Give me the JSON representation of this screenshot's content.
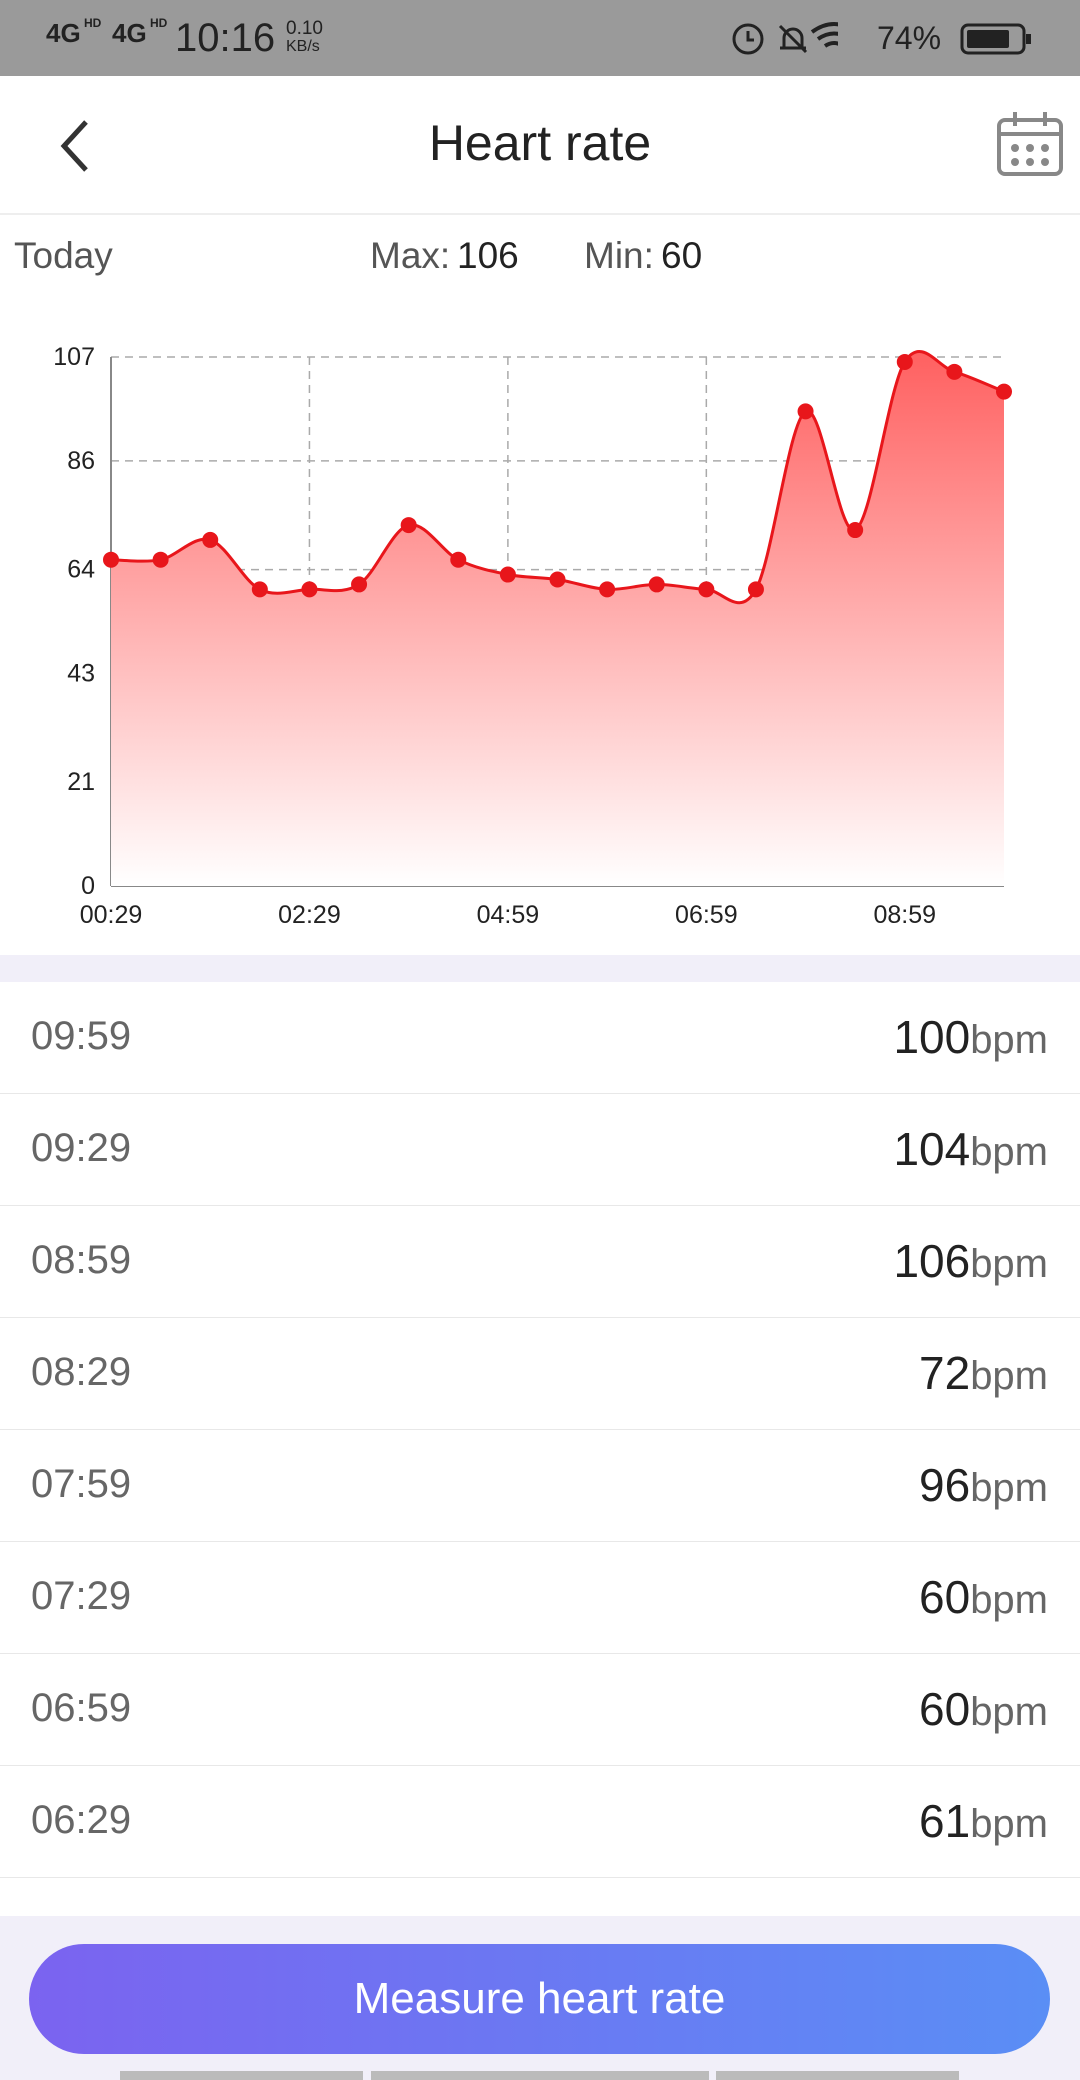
{
  "status_bar": {
    "network": [
      "4G",
      "4G"
    ],
    "network_badge": "HD",
    "time": "10:16",
    "speed": "0.10",
    "speed_unit": "KB/s",
    "battery": "74%"
  },
  "header": {
    "title": "Heart rate"
  },
  "summary": {
    "period": "Today",
    "max_label": "Max:",
    "max": 106,
    "min_label": "Min:",
    "min": 60
  },
  "chart_data": {
    "type": "area",
    "color": "#e8161b",
    "grid": true,
    "categories": [
      "00:29",
      null,
      null,
      null,
      "02:29",
      null,
      null,
      null,
      "04:59",
      null,
      null,
      null,
      "06:59",
      null,
      null,
      null,
      "08:59",
      null,
      null
    ],
    "values": [
      66,
      66,
      70,
      60,
      60,
      61,
      73,
      66,
      63,
      62,
      60,
      61,
      60,
      60,
      96,
      72,
      106,
      104,
      100
    ],
    "ylim": [
      0,
      107
    ],
    "yticks": [
      0,
      21,
      43,
      64,
      86,
      107
    ]
  },
  "records": [
    {
      "time": "09:59",
      "value": 100,
      "unit": "bpm"
    },
    {
      "time": "09:29",
      "value": 104,
      "unit": "bpm"
    },
    {
      "time": "08:59",
      "value": 106,
      "unit": "bpm"
    },
    {
      "time": "08:29",
      "value": 72,
      "unit": "bpm"
    },
    {
      "time": "07:59",
      "value": 96,
      "unit": "bpm"
    },
    {
      "time": "07:29",
      "value": 60,
      "unit": "bpm"
    },
    {
      "time": "06:59",
      "value": 60,
      "unit": "bpm"
    },
    {
      "time": "06:29",
      "value": 61,
      "unit": "bpm"
    }
  ],
  "button": {
    "label": "Measure heart rate"
  }
}
